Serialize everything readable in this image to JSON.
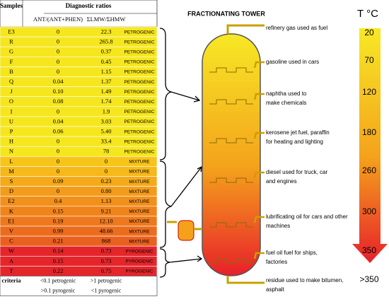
{
  "table": {
    "headers": {
      "samples": "Samples",
      "group": "Diagnostic ratios",
      "col1": "ANT/(ANT+PHEN)",
      "col2": "ΣLMW/ΣHMW"
    },
    "rows": [
      [
        "E3",
        "0",
        "22.3",
        "PETROGENIC"
      ],
      [
        "R",
        "0",
        "265.8",
        "PETROGENIC"
      ],
      [
        "G",
        "0",
        "0.37",
        "PETROGENIC"
      ],
      [
        "F",
        "0",
        "0.45",
        "PETROGENIC"
      ],
      [
        "B",
        "0",
        "1.15",
        "PETROGENIC"
      ],
      [
        "Q",
        "0.04",
        "1.37",
        "PETROGENIC"
      ],
      [
        "J",
        "0.10",
        "1.49",
        "PETROGENIC"
      ],
      [
        "O",
        "0.08",
        "1.74",
        "PETROGENIC"
      ],
      [
        "I",
        "0",
        "1.9",
        "PETROGENIC"
      ],
      [
        "U",
        "0.04",
        "3.03",
        "PETROGENIC"
      ],
      [
        "P",
        "0.06",
        "5.40",
        "PETROGENIC"
      ],
      [
        "H",
        "0",
        "33.4",
        "PETROGENIC"
      ],
      [
        "N",
        "0",
        "78",
        "PETROGENIC"
      ],
      [
        "L",
        "0",
        "0",
        "MIXTURE"
      ],
      [
        "M",
        "0",
        "0",
        "MIXTURE"
      ],
      [
        "S",
        "0.09",
        "0.23",
        "MIXTURE"
      ],
      [
        "D",
        "0",
        "0.80",
        "MIXTURE"
      ],
      [
        "E2",
        "0.4",
        "1.13",
        "MIXTURE"
      ],
      [
        "K",
        "0.15",
        "9.21",
        "MIXTURE"
      ],
      [
        "E1",
        "0.19",
        "12.10",
        "MIXTURE"
      ],
      [
        "V",
        "0.99",
        "48.66",
        "MIXTURE"
      ],
      [
        "C",
        "0.21",
        "868",
        "MIXTURE"
      ],
      [
        "W",
        "0.14",
        "0.73",
        "PYROGENIC"
      ],
      [
        "A",
        "0.15",
        "0.73",
        "PYROGENIC"
      ],
      [
        "T",
        "0.22",
        "0.75",
        "PYROGENIC"
      ]
    ],
    "criteria": {
      "label": "criteria",
      "rows": [
        [
          "<0.1 petrogenic",
          ">1 petrogenic"
        ],
        [
          ">0.1 pyrogenic",
          "<1 pyrogenic"
        ]
      ]
    }
  },
  "tower": {
    "title": "FRACTIONATING TOWER",
    "products": [
      [
        "refinery gas used as fuel"
      ],
      [
        "gasoline used in cars"
      ],
      [
        "naphtha used to",
        "make chemicals"
      ],
      [
        "kerosene jet fuel, paraffin",
        "for heating and lighting"
      ],
      [
        "diesel  used for truck, car",
        "and engines"
      ],
      [
        "lubrificating oil for cars and other",
        "machines"
      ],
      [
        "fuel oil  fuel for ships,",
        "factories"
      ],
      [
        "residue used to make bitumen,",
        "asphalt"
      ]
    ]
  },
  "temperature": {
    "label": "T °C",
    "marks": [
      "20",
      "70",
      "120",
      "180",
      "260",
      "300",
      "350",
      ">350"
    ]
  }
}
